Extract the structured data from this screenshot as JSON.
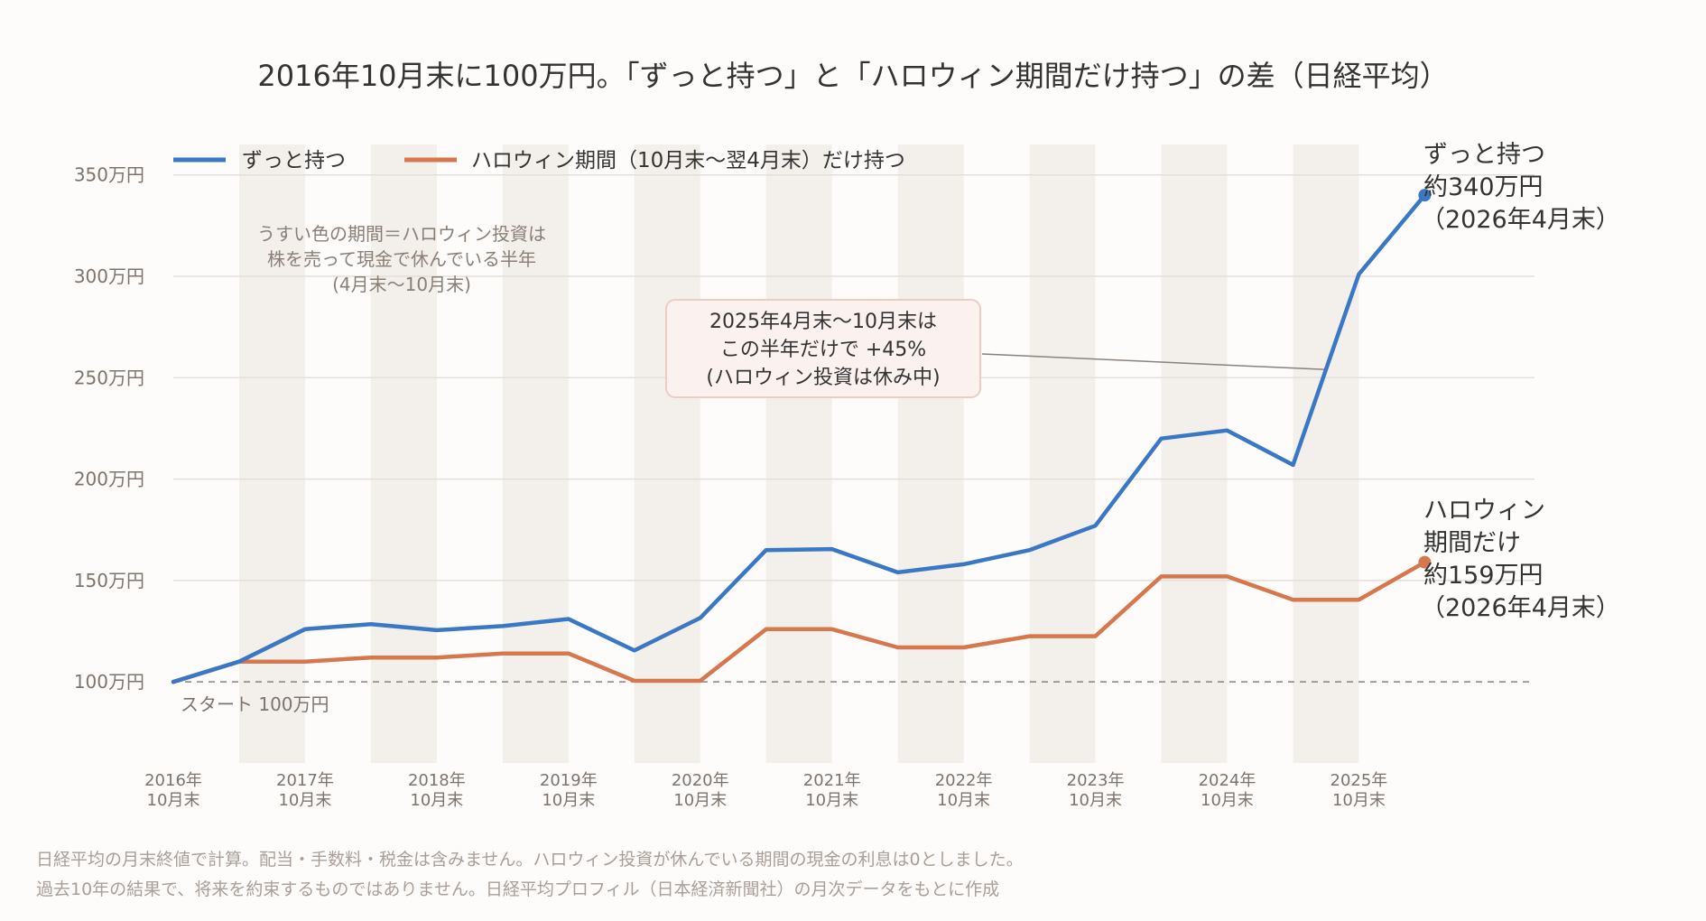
{
  "chart_data": {
    "type": "line",
    "title": "2016年10月末に100万円。「ずっと持つ」と「ハロウィン期間だけ持つ」の差（日経平均）",
    "y_unit": "万円",
    "ylim": [
      60,
      365
    ],
    "y_ticks": [
      {
        "value": 100,
        "label": "100万円"
      },
      {
        "value": 150,
        "label": "150万円"
      },
      {
        "value": 200,
        "label": "200万円"
      },
      {
        "value": 250,
        "label": "250万円"
      },
      {
        "value": 300,
        "label": "300万円"
      },
      {
        "value": 350,
        "label": "350万円"
      }
    ],
    "x_ticks": [
      {
        "date": "2016-10",
        "year": "2016年",
        "month": "10月末"
      },
      {
        "date": "2017-10",
        "year": "2017年",
        "month": "10月末"
      },
      {
        "date": "2018-10",
        "year": "2018年",
        "month": "10月末"
      },
      {
        "date": "2019-10",
        "year": "2019年",
        "month": "10月末"
      },
      {
        "date": "2020-10",
        "year": "2020年",
        "month": "10月末"
      },
      {
        "date": "2021-10",
        "year": "2021年",
        "month": "10月末"
      },
      {
        "date": "2022-10",
        "year": "2022年",
        "month": "10月末"
      },
      {
        "date": "2023-10",
        "year": "2023年",
        "month": "10月末"
      },
      {
        "date": "2024-10",
        "year": "2024年",
        "month": "10月末"
      },
      {
        "date": "2025-10",
        "year": "2025年",
        "month": "10月末"
      }
    ],
    "xlim": [
      "2016-10",
      "2027-02"
    ],
    "x": [
      "2016-10",
      "2017-04",
      "2017-10",
      "2018-04",
      "2018-10",
      "2019-04",
      "2019-10",
      "2020-04",
      "2020-10",
      "2021-04",
      "2021-10",
      "2022-04",
      "2022-10",
      "2023-04",
      "2023-10",
      "2024-04",
      "2024-10",
      "2025-04",
      "2025-10",
      "2026-04"
    ],
    "series": [
      {
        "name": "ずっと持つ",
        "color": "#3a78c6",
        "values": [
          100,
          110,
          126,
          128.5,
          125.5,
          127.5,
          131,
          115.5,
          131.5,
          165,
          165.5,
          154,
          158,
          165,
          177,
          220,
          224,
          207,
          301,
          340
        ]
      },
      {
        "name": "ハロウィン期間（10月末〜翌4月末）だけ持つ",
        "color": "#d6774d",
        "values": [
          100,
          110,
          110,
          112,
          112,
          114,
          114,
          100.5,
          100.5,
          126,
          126,
          117,
          117,
          122.5,
          122.5,
          152,
          152,
          140.5,
          140.5,
          159
        ]
      }
    ],
    "shaded_periods": [
      [
        "2017-04",
        "2017-10"
      ],
      [
        "2018-04",
        "2018-10"
      ],
      [
        "2019-04",
        "2019-10"
      ],
      [
        "2020-04",
        "2020-10"
      ],
      [
        "2021-04",
        "2021-10"
      ],
      [
        "2022-04",
        "2022-10"
      ],
      [
        "2023-04",
        "2023-10"
      ],
      [
        "2024-04",
        "2024-10"
      ],
      [
        "2025-04",
        "2025-10"
      ]
    ],
    "shade_color": "#f3efea",
    "grid": true,
    "legend_position": "top-left",
    "baseline": {
      "value": 100,
      "label": "スタート 100万円"
    },
    "note_lines": [
      "うすい色の期間＝ハロウィン投資は",
      "株を売って現金で休んでいる半年",
      "(4月末〜10月末)"
    ],
    "annotation": {
      "lines": [
        "2025年4月末〜10月末は",
        "この半年だけで +45%",
        "(ハロウィン投資は休み中)"
      ],
      "target_date": "2025-07",
      "target_value": 254
    },
    "end_labels": {
      "hold": [
        "ずっと持つ",
        "約340万円",
        "（2026年4月末）"
      ],
      "halloween": [
        "ハロウィン",
        "期間だけ",
        "約159万円",
        "（2026年4月末）"
      ]
    },
    "footnotes": [
      "日経平均の月末終値で計算。配当・手数料・税金は含みません。ハロウィン投資が休んでいる期間の現金の利息は0としました。",
      "過去10年の結果で、将来を約束するものではありません。日経平均プロフィル（日本経済新聞社）の月次データをもとに作成"
    ]
  }
}
